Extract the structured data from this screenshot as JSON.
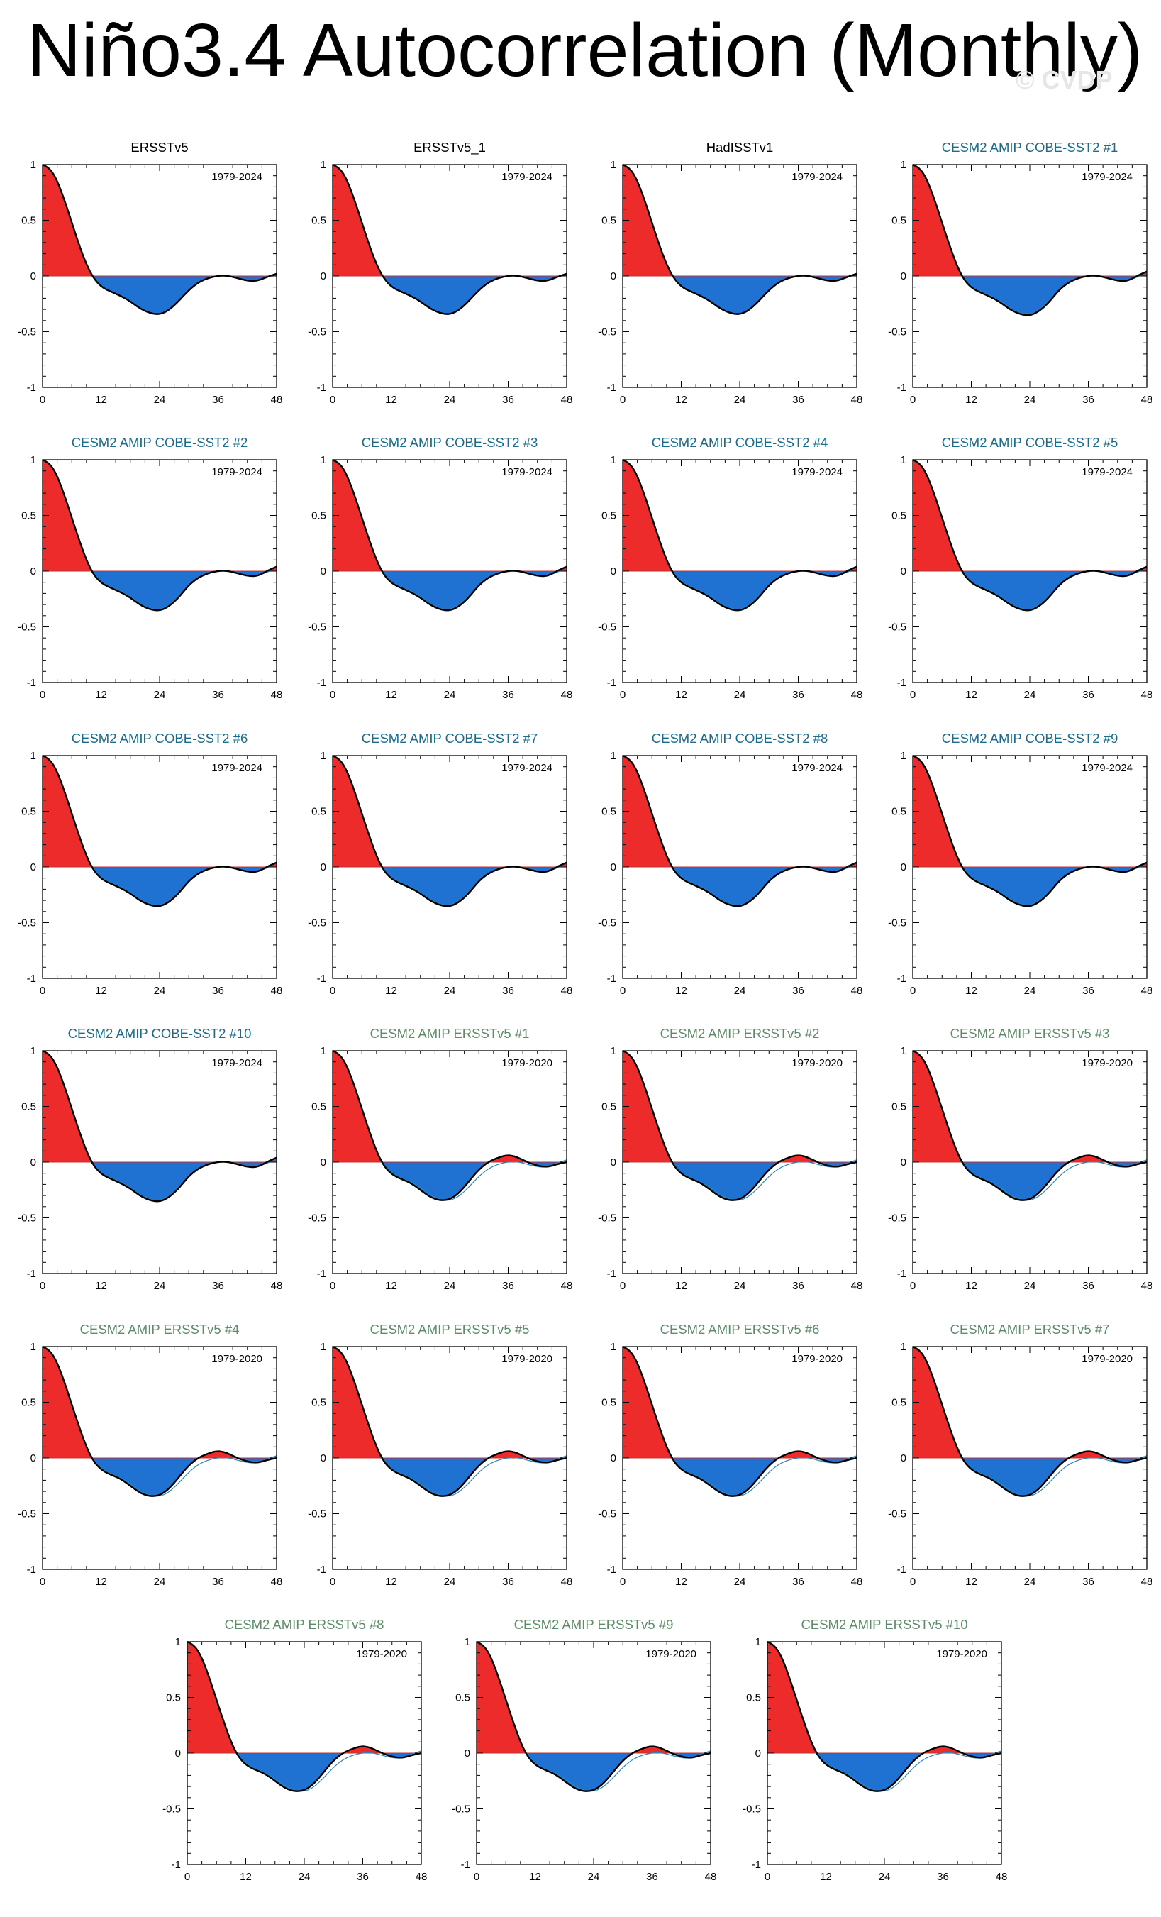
{
  "title": "Niño3.4 Autocorrelation (Monthly)",
  "watermark": "© CVDP",
  "colors": {
    "positive_fill": "#ee2b2b",
    "negative_fill": "#1f72d1",
    "main_line": "#000000",
    "reference_line": "#2d86b8",
    "obs_title": "#000000",
    "cobe_title": "#1a6b8c",
    "ersst_title": "#5e8c6a"
  },
  "chart_data": {
    "type": "area",
    "shared_axes": {
      "xlim": [
        0,
        48
      ],
      "ylim": [
        -1,
        1
      ],
      "xticks": [
        0,
        12,
        24,
        36,
        48
      ],
      "xtick_labels": [
        "0",
        "12",
        "24",
        "36",
        "48"
      ],
      "yticks": [
        1,
        0.5,
        0,
        -0.5,
        -1
      ],
      "ytick_labels": [
        "1",
        "0.5",
        "0",
        "-0.5",
        "-1"
      ],
      "xlabel": "",
      "ylabel": ""
    },
    "lags_months": [
      0,
      2,
      4,
      6,
      8,
      10,
      12,
      14,
      16,
      18,
      20,
      22,
      24,
      26,
      28,
      30,
      32,
      34,
      36,
      38,
      40,
      42,
      44,
      46,
      48
    ],
    "reference_series": {
      "name": "ERSSTv5 1979-2024",
      "values": [
        1.0,
        0.93,
        0.74,
        0.48,
        0.22,
        0.02,
        -0.09,
        -0.14,
        -0.18,
        -0.23,
        -0.29,
        -0.33,
        -0.34,
        -0.3,
        -0.22,
        -0.13,
        -0.06,
        -0.02,
        0.0,
        0.0,
        -0.02,
        -0.04,
        -0.04,
        -0.01,
        0.02
      ]
    },
    "panels": [
      {
        "title": "ERSSTv5",
        "title_group": "obs",
        "period": "1979-2024",
        "values": [
          1.0,
          0.93,
          0.74,
          0.48,
          0.22,
          0.02,
          -0.09,
          -0.14,
          -0.18,
          -0.23,
          -0.29,
          -0.33,
          -0.34,
          -0.3,
          -0.22,
          -0.13,
          -0.06,
          -0.02,
          0.0,
          0.0,
          -0.02,
          -0.04,
          -0.04,
          -0.01,
          0.02
        ]
      },
      {
        "title": "ERSSTv5_1",
        "title_group": "obs",
        "period": "1979-2024",
        "values": [
          1.0,
          0.93,
          0.74,
          0.48,
          0.22,
          0.02,
          -0.09,
          -0.14,
          -0.18,
          -0.23,
          -0.29,
          -0.33,
          -0.34,
          -0.3,
          -0.22,
          -0.13,
          -0.06,
          -0.02,
          0.0,
          0.0,
          -0.02,
          -0.04,
          -0.04,
          -0.01,
          0.02
        ]
      },
      {
        "title": "HadISSTv1",
        "title_group": "obs",
        "period": "1979-2024",
        "values": [
          1.0,
          0.93,
          0.74,
          0.48,
          0.22,
          0.02,
          -0.09,
          -0.14,
          -0.18,
          -0.23,
          -0.29,
          -0.33,
          -0.34,
          -0.3,
          -0.22,
          -0.13,
          -0.06,
          -0.02,
          0.0,
          0.0,
          -0.02,
          -0.04,
          -0.04,
          -0.01,
          0.02
        ]
      },
      {
        "title": "CESM2 AMIP COBE-SST2 #1",
        "title_group": "cobe",
        "period": "1979-2024",
        "values": [
          1.0,
          0.93,
          0.74,
          0.48,
          0.22,
          0.01,
          -0.1,
          -0.15,
          -0.19,
          -0.24,
          -0.3,
          -0.34,
          -0.35,
          -0.31,
          -0.23,
          -0.13,
          -0.06,
          -0.02,
          0.0,
          0.0,
          -0.02,
          -0.04,
          -0.04,
          0.0,
          0.04
        ]
      },
      {
        "title": "CESM2 AMIP COBE-SST2 #2",
        "title_group": "cobe",
        "period": "1979-2024",
        "values": [
          1.0,
          0.93,
          0.74,
          0.48,
          0.22,
          0.01,
          -0.1,
          -0.15,
          -0.19,
          -0.24,
          -0.3,
          -0.34,
          -0.35,
          -0.31,
          -0.23,
          -0.13,
          -0.06,
          -0.02,
          0.0,
          0.0,
          -0.02,
          -0.04,
          -0.04,
          0.0,
          0.04
        ]
      },
      {
        "title": "CESM2 AMIP COBE-SST2 #3",
        "title_group": "cobe",
        "period": "1979-2024",
        "values": [
          1.0,
          0.93,
          0.74,
          0.48,
          0.22,
          0.01,
          -0.1,
          -0.15,
          -0.19,
          -0.24,
          -0.3,
          -0.34,
          -0.35,
          -0.31,
          -0.23,
          -0.13,
          -0.06,
          -0.02,
          0.0,
          0.0,
          -0.02,
          -0.04,
          -0.04,
          0.0,
          0.04
        ]
      },
      {
        "title": "CESM2 AMIP COBE-SST2 #4",
        "title_group": "cobe",
        "period": "1979-2024",
        "values": [
          1.0,
          0.93,
          0.74,
          0.48,
          0.22,
          0.01,
          -0.1,
          -0.15,
          -0.19,
          -0.24,
          -0.3,
          -0.34,
          -0.35,
          -0.31,
          -0.23,
          -0.13,
          -0.06,
          -0.02,
          0.0,
          0.0,
          -0.02,
          -0.04,
          -0.04,
          0.0,
          0.04
        ]
      },
      {
        "title": "CESM2 AMIP COBE-SST2 #5",
        "title_group": "cobe",
        "period": "1979-2024",
        "values": [
          1.0,
          0.93,
          0.74,
          0.48,
          0.22,
          0.01,
          -0.1,
          -0.15,
          -0.19,
          -0.24,
          -0.3,
          -0.34,
          -0.35,
          -0.31,
          -0.23,
          -0.13,
          -0.06,
          -0.02,
          0.0,
          0.0,
          -0.02,
          -0.04,
          -0.04,
          0.0,
          0.04
        ]
      },
      {
        "title": "CESM2 AMIP COBE-SST2 #6",
        "title_group": "cobe",
        "period": "1979-2024",
        "values": [
          1.0,
          0.93,
          0.74,
          0.48,
          0.22,
          0.01,
          -0.1,
          -0.15,
          -0.19,
          -0.24,
          -0.3,
          -0.34,
          -0.35,
          -0.31,
          -0.23,
          -0.13,
          -0.06,
          -0.02,
          0.0,
          0.0,
          -0.02,
          -0.04,
          -0.04,
          0.0,
          0.04
        ]
      },
      {
        "title": "CESM2 AMIP COBE-SST2 #7",
        "title_group": "cobe",
        "period": "1979-2024",
        "values": [
          1.0,
          0.93,
          0.74,
          0.48,
          0.22,
          0.01,
          -0.1,
          -0.15,
          -0.19,
          -0.24,
          -0.3,
          -0.34,
          -0.35,
          -0.31,
          -0.23,
          -0.13,
          -0.06,
          -0.02,
          0.0,
          0.0,
          -0.02,
          -0.04,
          -0.04,
          0.0,
          0.04
        ]
      },
      {
        "title": "CESM2 AMIP COBE-SST2 #8",
        "title_group": "cobe",
        "period": "1979-2024",
        "values": [
          1.0,
          0.93,
          0.74,
          0.48,
          0.22,
          0.01,
          -0.1,
          -0.15,
          -0.19,
          -0.24,
          -0.3,
          -0.34,
          -0.35,
          -0.31,
          -0.23,
          -0.13,
          -0.06,
          -0.02,
          0.0,
          0.0,
          -0.02,
          -0.04,
          -0.04,
          0.0,
          0.04
        ]
      },
      {
        "title": "CESM2 AMIP COBE-SST2 #9",
        "title_group": "cobe",
        "period": "1979-2024",
        "values": [
          1.0,
          0.93,
          0.74,
          0.48,
          0.22,
          0.01,
          -0.1,
          -0.15,
          -0.19,
          -0.24,
          -0.3,
          -0.34,
          -0.35,
          -0.31,
          -0.23,
          -0.13,
          -0.06,
          -0.02,
          0.0,
          0.0,
          -0.02,
          -0.04,
          -0.04,
          0.0,
          0.04
        ]
      },
      {
        "title": "CESM2 AMIP COBE-SST2 #10",
        "title_group": "cobe",
        "period": "1979-2024",
        "values": [
          1.0,
          0.93,
          0.74,
          0.48,
          0.22,
          0.01,
          -0.1,
          -0.15,
          -0.19,
          -0.24,
          -0.3,
          -0.34,
          -0.35,
          -0.31,
          -0.23,
          -0.13,
          -0.06,
          -0.02,
          0.0,
          0.0,
          -0.02,
          -0.04,
          -0.04,
          0.0,
          0.04
        ]
      },
      {
        "title": "CESM2 AMIP ERSSTv5 #1",
        "title_group": "ersst",
        "period": "1979-2020",
        "values": [
          1.0,
          0.93,
          0.74,
          0.48,
          0.22,
          0.01,
          -0.1,
          -0.15,
          -0.19,
          -0.25,
          -0.31,
          -0.34,
          -0.33,
          -0.27,
          -0.17,
          -0.07,
          0.0,
          0.04,
          0.06,
          0.04,
          0.0,
          -0.03,
          -0.04,
          -0.02,
          0.0
        ]
      },
      {
        "title": "CESM2 AMIP ERSSTv5 #2",
        "title_group": "ersst",
        "period": "1979-2020",
        "values": [
          1.0,
          0.93,
          0.74,
          0.48,
          0.22,
          0.01,
          -0.1,
          -0.15,
          -0.19,
          -0.25,
          -0.31,
          -0.34,
          -0.33,
          -0.27,
          -0.17,
          -0.07,
          0.0,
          0.04,
          0.06,
          0.04,
          0.0,
          -0.03,
          -0.04,
          -0.02,
          0.0
        ]
      },
      {
        "title": "CESM2 AMIP ERSSTv5 #3",
        "title_group": "ersst",
        "period": "1979-2020",
        "values": [
          1.0,
          0.93,
          0.74,
          0.48,
          0.22,
          0.01,
          -0.1,
          -0.15,
          -0.19,
          -0.25,
          -0.31,
          -0.34,
          -0.33,
          -0.27,
          -0.17,
          -0.07,
          0.0,
          0.04,
          0.06,
          0.04,
          0.0,
          -0.03,
          -0.04,
          -0.02,
          0.0
        ]
      },
      {
        "title": "CESM2 AMIP ERSSTv5 #4",
        "title_group": "ersst",
        "period": "1979-2020",
        "values": [
          1.0,
          0.93,
          0.74,
          0.48,
          0.22,
          0.01,
          -0.1,
          -0.15,
          -0.19,
          -0.25,
          -0.31,
          -0.34,
          -0.33,
          -0.27,
          -0.17,
          -0.07,
          0.0,
          0.04,
          0.06,
          0.04,
          0.0,
          -0.03,
          -0.04,
          -0.02,
          0.0
        ]
      },
      {
        "title": "CESM2 AMIP ERSSTv5 #5",
        "title_group": "ersst",
        "period": "1979-2020",
        "values": [
          1.0,
          0.93,
          0.74,
          0.48,
          0.22,
          0.01,
          -0.1,
          -0.15,
          -0.19,
          -0.25,
          -0.31,
          -0.34,
          -0.33,
          -0.27,
          -0.17,
          -0.07,
          0.0,
          0.04,
          0.06,
          0.04,
          0.0,
          -0.03,
          -0.04,
          -0.02,
          0.0
        ]
      },
      {
        "title": "CESM2 AMIP ERSSTv5 #6",
        "title_group": "ersst",
        "period": "1979-2020",
        "values": [
          1.0,
          0.93,
          0.74,
          0.48,
          0.22,
          0.01,
          -0.1,
          -0.15,
          -0.19,
          -0.25,
          -0.31,
          -0.34,
          -0.33,
          -0.27,
          -0.17,
          -0.07,
          0.0,
          0.04,
          0.06,
          0.04,
          0.0,
          -0.03,
          -0.04,
          -0.02,
          0.0
        ]
      },
      {
        "title": "CESM2 AMIP ERSSTv5 #7",
        "title_group": "ersst",
        "period": "1979-2020",
        "values": [
          1.0,
          0.93,
          0.74,
          0.48,
          0.22,
          0.01,
          -0.1,
          -0.15,
          -0.19,
          -0.25,
          -0.31,
          -0.34,
          -0.33,
          -0.27,
          -0.17,
          -0.07,
          0.0,
          0.04,
          0.06,
          0.04,
          0.0,
          -0.03,
          -0.04,
          -0.02,
          0.0
        ]
      },
      {
        "title": "CESM2 AMIP ERSSTv5 #8",
        "title_group": "ersst",
        "period": "1979-2020",
        "values": [
          1.0,
          0.93,
          0.74,
          0.48,
          0.22,
          0.01,
          -0.1,
          -0.15,
          -0.19,
          -0.25,
          -0.31,
          -0.34,
          -0.33,
          -0.27,
          -0.17,
          -0.07,
          0.0,
          0.04,
          0.06,
          0.04,
          0.0,
          -0.03,
          -0.04,
          -0.02,
          0.0
        ]
      },
      {
        "title": "CESM2 AMIP ERSSTv5 #9",
        "title_group": "ersst",
        "period": "1979-2020",
        "values": [
          1.0,
          0.93,
          0.74,
          0.48,
          0.22,
          0.01,
          -0.1,
          -0.15,
          -0.19,
          -0.25,
          -0.31,
          -0.34,
          -0.33,
          -0.27,
          -0.17,
          -0.07,
          0.0,
          0.04,
          0.06,
          0.04,
          0.0,
          -0.03,
          -0.04,
          -0.02,
          0.0
        ]
      },
      {
        "title": "CESM2 AMIP ERSSTv5 #10",
        "title_group": "ersst",
        "period": "1979-2020",
        "values": [
          1.0,
          0.93,
          0.74,
          0.48,
          0.22,
          0.01,
          -0.1,
          -0.15,
          -0.19,
          -0.25,
          -0.31,
          -0.34,
          -0.33,
          -0.27,
          -0.17,
          -0.07,
          0.0,
          0.04,
          0.06,
          0.04,
          0.0,
          -0.03,
          -0.04,
          -0.02,
          0.0
        ]
      }
    ]
  }
}
